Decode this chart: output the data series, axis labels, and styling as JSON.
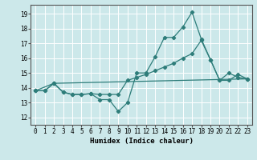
{
  "xlabel": "Humidex (Indice chaleur)",
  "xlim": [
    -0.5,
    23.5
  ],
  "ylim": [
    11.5,
    19.6
  ],
  "yticks": [
    12,
    13,
    14,
    15,
    16,
    17,
    18,
    19
  ],
  "xticks": [
    0,
    1,
    2,
    3,
    4,
    5,
    6,
    7,
    8,
    9,
    10,
    11,
    12,
    13,
    14,
    15,
    16,
    17,
    18,
    19,
    20,
    21,
    22,
    23
  ],
  "background_color": "#cce8ea",
  "grid_color": "#ffffff",
  "line_color": "#2e7d7a",
  "line1_x": [
    0,
    1,
    2,
    3,
    4,
    5,
    6,
    7,
    8,
    9,
    10,
    11,
    12,
    13,
    14,
    15,
    16,
    17,
    18,
    19,
    20,
    21,
    22,
    23
  ],
  "line1_y": [
    13.8,
    13.8,
    14.3,
    13.7,
    13.55,
    13.55,
    13.6,
    13.2,
    13.2,
    12.4,
    13.0,
    15.0,
    15.0,
    16.1,
    17.4,
    17.4,
    18.1,
    19.1,
    17.3,
    15.9,
    14.5,
    15.0,
    14.7,
    14.6
  ],
  "line2_x": [
    0,
    1,
    2,
    3,
    4,
    5,
    6,
    7,
    8,
    9,
    10,
    11,
    12,
    13,
    14,
    15,
    16,
    17,
    18,
    19,
    20,
    21,
    22,
    23
  ],
  "line2_y": [
    13.8,
    13.8,
    14.3,
    13.7,
    13.55,
    13.55,
    13.6,
    13.55,
    13.55,
    13.55,
    14.5,
    14.7,
    14.9,
    15.15,
    15.4,
    15.65,
    16.0,
    16.3,
    17.2,
    15.9,
    14.5,
    14.5,
    14.9,
    14.6
  ],
  "line3_x": [
    0,
    2,
    23
  ],
  "line3_y": [
    13.8,
    14.3,
    14.6
  ]
}
